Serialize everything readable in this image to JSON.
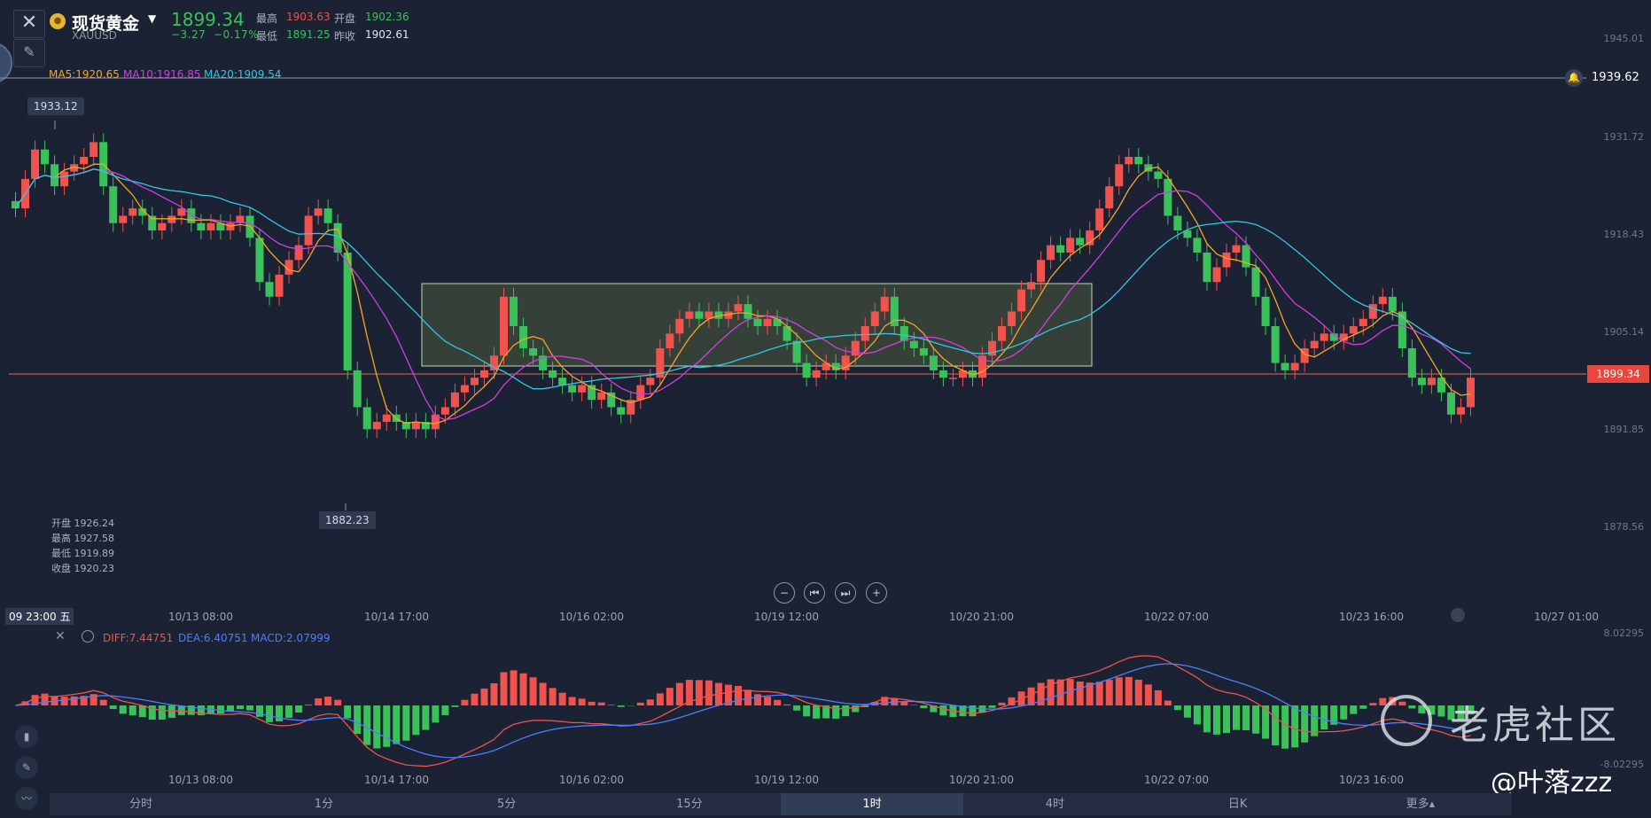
{
  "header": {
    "close_icon": "close-icon",
    "symbol_name": "现货黄金",
    "symbol_code": "XAUUSD",
    "price": "1899.34",
    "change": "−3.27",
    "change_pct": "−0.17%",
    "high_label": "最高",
    "high_value": "1903.63",
    "open_label": "开盘",
    "open_value": "1902.36",
    "low_label": "最低",
    "low_value": "1891.25",
    "prev_label": "昨收",
    "prev_value": "1902.61"
  },
  "ma_legend": {
    "ma5": "MA5:1920.65",
    "ma10": "MA10:1916.85",
    "ma20": "MA20:1909.54"
  },
  "colors": {
    "up": "#f0524d",
    "down": "#3bc15a",
    "ma5": "#f5a623",
    "ma10": "#d03fe0",
    "ma20": "#35c6e0",
    "diff": "#f0524d",
    "dea": "#4e7dff"
  },
  "price_axis": [
    "1945.01",
    "1931.72",
    "1918.43",
    "1905.14",
    "1891.85",
    "1878.56"
  ],
  "alert_price": "1939.62",
  "current_price_tag": "1899.34",
  "max_tag": "1933.12",
  "min_tag": "1882.23",
  "ohlc_box": {
    "open": "开盘 1926.24",
    "high": "最高 1927.58",
    "low": "最低 1919.89",
    "close": "收盘 1920.23"
  },
  "x_axis": [
    "10/13 08:00",
    "10/14 17:00",
    "10/16 02:00",
    "10/19 12:00",
    "10/20 21:00",
    "10/22 07:00",
    "10/23 16:00",
    "10/27 01:00"
  ],
  "crosshair_time": "09 23:00 五",
  "macd_legend": {
    "diff": "DIFF:7.44751",
    "dea": "DEA:6.40751",
    "macd": "MACD:2.07999"
  },
  "macd_axis": [
    "8.02295",
    "-8.02295"
  ],
  "tabs": [
    "分时",
    "1分",
    "5分",
    "15分",
    "1时",
    "4时",
    "日K",
    "更多"
  ],
  "selected_tab": "1时",
  "watermark": "老虎社区",
  "watermark_user": "@叶落zzz",
  "chart_data": {
    "type": "candlestick",
    "closes": [
      1922,
      1926,
      1930,
      1928,
      1925,
      1927,
      1928,
      1929,
      1931,
      1925,
      1920,
      1921,
      1922,
      1921,
      1919,
      1920,
      1921,
      1922,
      1920,
      1919,
      1920,
      1919,
      1920,
      1921,
      1918,
      1912,
      1910,
      1913,
      1915,
      1917,
      1921,
      1922,
      1920,
      1916,
      1900,
      1895,
      1892,
      1893,
      1894,
      1893,
      1892,
      1893,
      1892,
      1894,
      1895,
      1897,
      1898,
      1899,
      1900,
      1902,
      1910,
      1906,
      1903,
      1902,
      1900,
      1899,
      1898,
      1897,
      1898,
      1896,
      1897,
      1895,
      1894,
      1896,
      1898,
      1899,
      1903,
      1905,
      1907,
      1908,
      1907,
      1908,
      1907,
      1908,
      1909,
      1907,
      1906,
      1907,
      1906,
      1904,
      1901,
      1899,
      1900,
      1901,
      1900,
      1902,
      1904,
      1906,
      1908,
      1910,
      1906,
      1904,
      1903,
      1902,
      1900,
      1899,
      1899,
      1900,
      1899,
      1902,
      1904,
      1906,
      1908,
      1911,
      1912,
      1915,
      1917,
      1916,
      1918,
      1917,
      1919,
      1922,
      1925,
      1928,
      1929,
      1928,
      1927,
      1926,
      1921,
      1919,
      1918,
      1916,
      1912,
      1914,
      1916,
      1917,
      1914,
      1910,
      1906,
      1901,
      1900,
      1901,
      1903,
      1904,
      1905,
      1904,
      1905,
      1906,
      1907,
      1909,
      1910,
      1908,
      1903,
      1899,
      1898,
      1899,
      1897,
      1894,
      1895,
      1899
    ],
    "ylim": [
      1878.56,
      1945.01
    ]
  }
}
